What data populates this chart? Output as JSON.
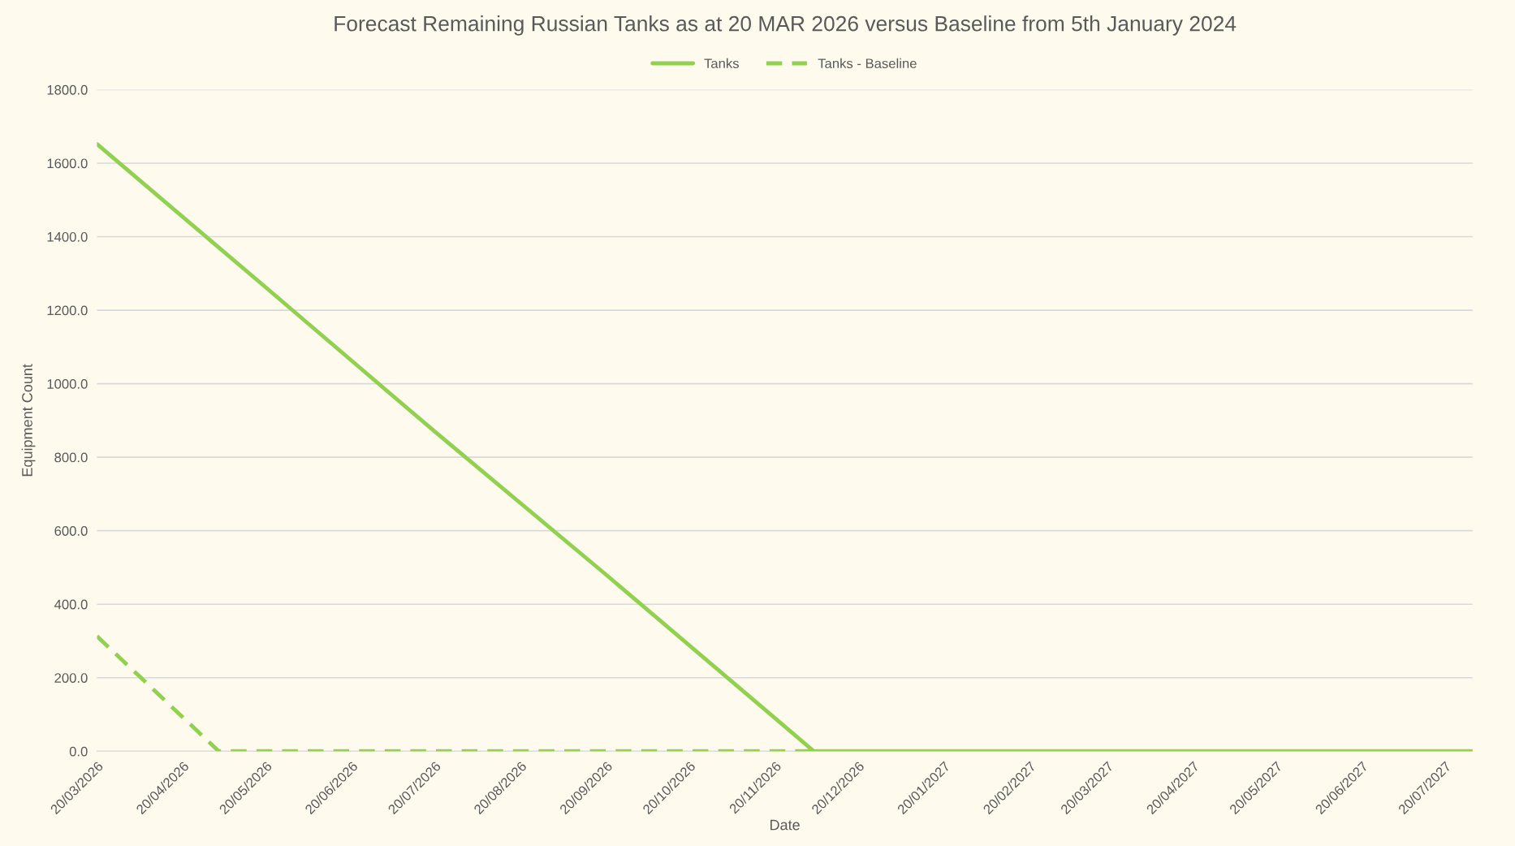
{
  "chart_data": {
    "type": "line",
    "title": "Forecast Remaining Russian Tanks as at 20 MAR 2026 versus Baseline from 5th January 2024",
    "xlabel": "Date",
    "ylabel": "Equipment Count",
    "series": [
      {
        "name": "Tanks",
        "color": "#92d050",
        "line_style": "solid",
        "x": [
          "2026-03-20",
          "2026-05-20",
          "2026-07-20",
          "2026-09-20",
          "2026-11-20",
          "2026-12-04",
          "2027-07-30"
        ],
        "values": [
          1652,
          1262,
          870,
          480,
          90,
          0,
          0
        ]
      },
      {
        "name": "Tanks - Baseline",
        "color": "#92d050",
        "line_style": "dashed",
        "x": [
          "2026-03-20",
          "2026-05-03",
          "2026-12-04"
        ],
        "values": [
          313,
          0,
          0
        ]
      }
    ],
    "xlim": [
      "2026-03-20",
      "2027-07-30"
    ],
    "xticks": [
      {
        "value": "2026-03-20",
        "label": "20/03/2026"
      },
      {
        "value": "2026-04-20",
        "label": "20/04/2026"
      },
      {
        "value": "2026-05-20",
        "label": "20/05/2026"
      },
      {
        "value": "2026-06-20",
        "label": "20/06/2026"
      },
      {
        "value": "2026-07-20",
        "label": "20/07/2026"
      },
      {
        "value": "2026-08-20",
        "label": "20/08/2026"
      },
      {
        "value": "2026-09-20",
        "label": "20/09/2026"
      },
      {
        "value": "2026-10-20",
        "label": "20/10/2026"
      },
      {
        "value": "2026-11-20",
        "label": "20/11/2026"
      },
      {
        "value": "2026-12-20",
        "label": "20/12/2026"
      },
      {
        "value": "2027-01-20",
        "label": "20/01/2027"
      },
      {
        "value": "2027-02-20",
        "label": "20/02/2027"
      },
      {
        "value": "2027-03-20",
        "label": "20/03/2027"
      },
      {
        "value": "2027-04-20",
        "label": "20/04/2027"
      },
      {
        "value": "2027-05-20",
        "label": "20/05/2027"
      },
      {
        "value": "2027-06-20",
        "label": "20/06/2027"
      },
      {
        "value": "2027-07-20",
        "label": "20/07/2027"
      }
    ],
    "ylim": [
      0,
      1800
    ],
    "yticks": [
      {
        "value": 0,
        "label": "0.0"
      },
      {
        "value": 200,
        "label": "200.0"
      },
      {
        "value": 400,
        "label": "400.0"
      },
      {
        "value": 600,
        "label": "600.0"
      },
      {
        "value": 800,
        "label": "800.0"
      },
      {
        "value": 1000,
        "label": "1000.0"
      },
      {
        "value": 1200,
        "label": "1200.0"
      },
      {
        "value": 1400,
        "label": "1400.0"
      },
      {
        "value": 1600,
        "label": "1600.0"
      },
      {
        "value": 1800,
        "label": "1800.0"
      }
    ],
    "grid": "y",
    "legend": "top",
    "marker": "none"
  }
}
